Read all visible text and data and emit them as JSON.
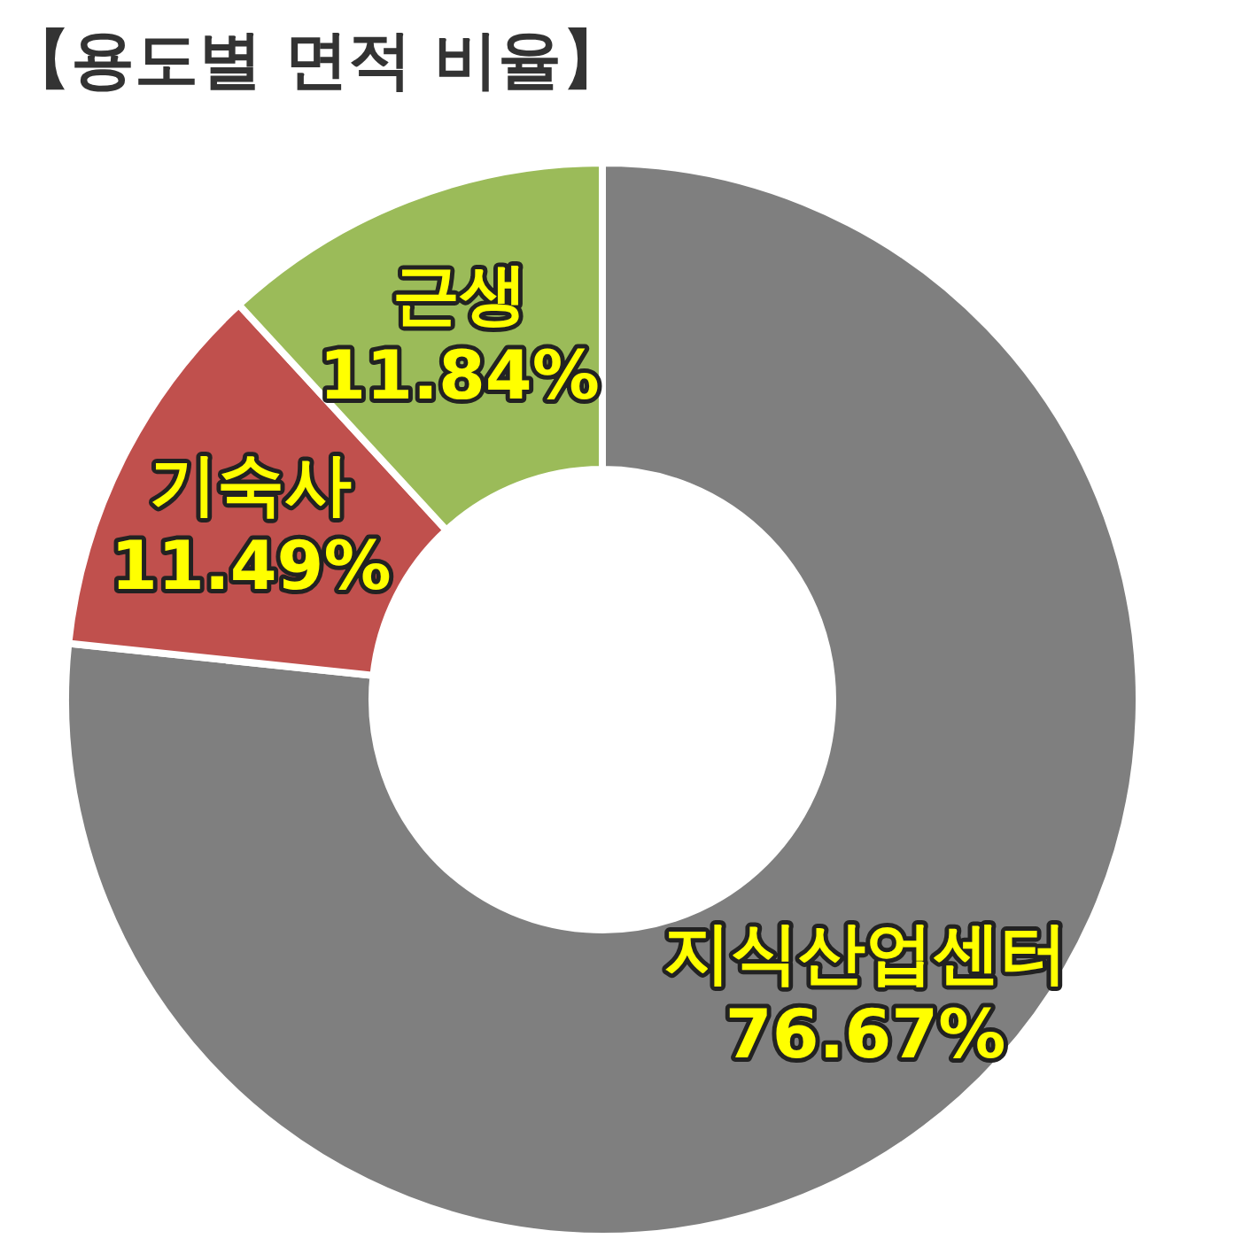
{
  "chart_data": {
    "type": "donut",
    "title": "【용도별 면적 비율】",
    "categories": [
      "지식산업센터",
      "기숙사",
      "근생"
    ],
    "values": [
      76.67,
      11.49,
      11.84
    ],
    "colors": [
      "#7f7f7f",
      "#c0504d",
      "#9bbb59"
    ],
    "value_labels": [
      "76.67%",
      "11.49%",
      "11.84%"
    ]
  }
}
